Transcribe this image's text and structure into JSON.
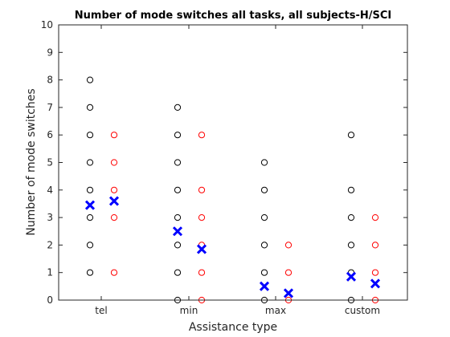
{
  "chart_data": {
    "type": "scatter",
    "title": "Number of mode switches all tasks, all subjects-H/SCI",
    "xlabel": "Assistance type",
    "ylabel": "Number of mode switches",
    "categories": [
      "tel",
      "min",
      "max",
      "custom"
    ],
    "ylim": [
      0,
      10
    ],
    "yticks": [
      0,
      1,
      2,
      3,
      4,
      5,
      6,
      7,
      8,
      9,
      10
    ],
    "grid": false,
    "colors": {
      "black_circles": "#000000",
      "red_circles": "#ff0000",
      "mean_markers": "#0000ff"
    },
    "series": [
      {
        "marker": "circle",
        "color": "#000000",
        "offset": "left",
        "values": [
          [
            1,
            2,
            3,
            4,
            5,
            6,
            7,
            8
          ],
          [
            0,
            1,
            2,
            3,
            4,
            5,
            6,
            7
          ],
          [
            0,
            1,
            2,
            3,
            4,
            5
          ],
          [
            0,
            1,
            2,
            3,
            4,
            6
          ]
        ]
      },
      {
        "marker": "circle",
        "color": "#ff0000",
        "offset": "right",
        "values": [
          [
            1,
            3,
            4,
            5,
            6
          ],
          [
            0,
            1,
            2,
            3,
            4,
            6
          ],
          [
            0,
            1,
            2
          ],
          [
            0,
            1,
            2,
            3
          ]
        ]
      },
      {
        "marker": "x",
        "color": "#0000ff",
        "offset": "left",
        "values": [
          3.45,
          2.5,
          0.5,
          0.85
        ]
      },
      {
        "marker": "x",
        "color": "#0000ff",
        "offset": "right",
        "values": [
          3.6,
          1.85,
          0.25,
          0.6
        ]
      }
    ]
  }
}
